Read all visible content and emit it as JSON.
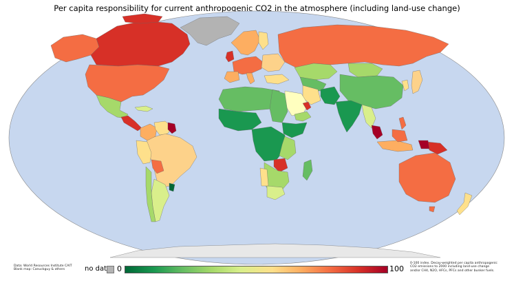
{
  "title": "Per capita responsibility for current anthropogenic CO2 in the atmosphere (including land-use change)",
  "legend": {
    "no_data_label": "no data",
    "no_data_color": "#b3b3b3",
    "scale_min": "0",
    "scale_max": "100",
    "colors": [
      "#006837",
      "#1a9850",
      "#66bd63",
      "#a6d96a",
      "#d9ef8b",
      "#fee08b",
      "#fdae61",
      "#f46d43",
      "#d73027",
      "#a50026"
    ]
  },
  "credits": {
    "source_line1": "Data: World Resources Institute CAIT",
    "source_line2": "Blank map: Canuckguy & others",
    "note_line1": "0-100 index. Decay-weighted per capita anthropogenic",
    "note_line2": "CO2 emissions to 2000 including land-use change",
    "note_line3": "and/or CH4, N2O, HFCs, PFCs and other bunker fuels."
  },
  "map_colors": {
    "ocean": "#c7d7ef",
    "no_data": "#b3b3b3",
    "antarctica": "#e8e8e8"
  }
}
